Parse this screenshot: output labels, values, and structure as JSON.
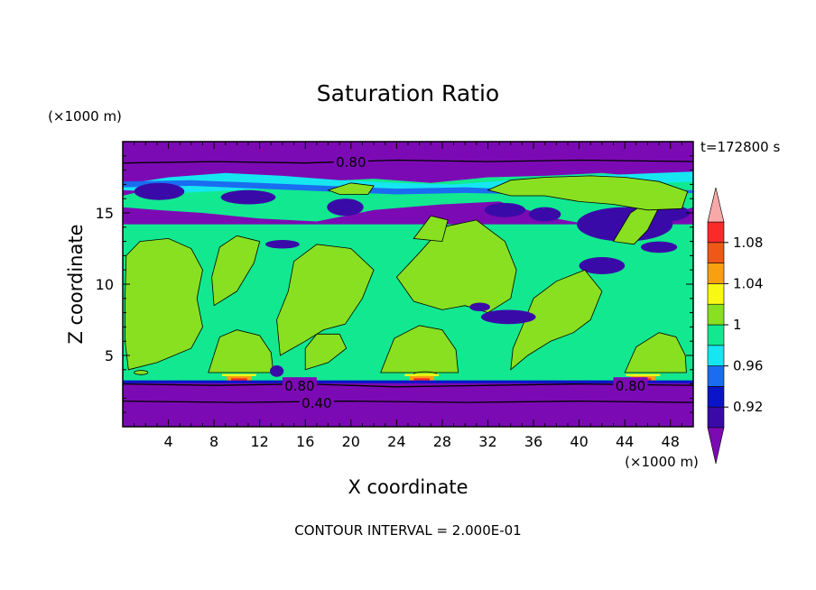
{
  "chart_data": {
    "type": "heatmap",
    "title": "Saturation Ratio",
    "xlabel": "X coordinate",
    "ylabel": "Z coordinate",
    "x_unit": "(×1000 m)",
    "y_unit": "(×1000 m)",
    "xlim": [
      0,
      50
    ],
    "ylim": [
      0,
      20
    ],
    "x_ticks": [
      4,
      8,
      12,
      16,
      20,
      24,
      28,
      32,
      36,
      40,
      44,
      48
    ],
    "y_ticks": [
      5,
      10,
      15
    ],
    "time_label": "t=172800 s",
    "footer": "CONTOUR INTERVAL = 2.000E-01",
    "colorbar": {
      "labels": [
        "1.08",
        "1.04",
        "1",
        "0.96",
        "0.92"
      ],
      "label_values": [
        1.08,
        1.04,
        1.0,
        0.96,
        0.92
      ],
      "levels": [
        0.9,
        0.92,
        0.94,
        0.96,
        0.98,
        1.0,
        1.02,
        1.04,
        1.06,
        1.08,
        1.1
      ],
      "colors": [
        "#3a0aa8",
        "#0a14c8",
        "#1a6cf0",
        "#16e6f0",
        "#12e890",
        "#88e020",
        "#f8f814",
        "#f8a010",
        "#f05818",
        "#f82a2a"
      ],
      "under_color": "#7c0ab4",
      "over_color": "#f8a8a8"
    },
    "contour_labels": [
      {
        "text": "0.80",
        "x": 20,
        "y": 18.6
      },
      {
        "text": "0.80",
        "x": 15.5,
        "y": 2.9
      },
      {
        "text": "0.80",
        "x": 44.5,
        "y": 2.9
      },
      {
        "text": "0.40",
        "x": 17,
        "y": 1.7
      }
    ],
    "regions": {
      "near_saturated_layer": {
        "z_range": [
          3.2,
          13.8
        ],
        "value": 0.99
      },
      "supersaturated_patches": {
        "value": 1.01
      },
      "subsaturated_top": {
        "z_range": [
          18.5,
          20
        ],
        "value": 0.8
      },
      "subsaturated_bottom": {
        "z_range": [
          0,
          3.1
        ],
        "value": 0.4
      }
    }
  }
}
